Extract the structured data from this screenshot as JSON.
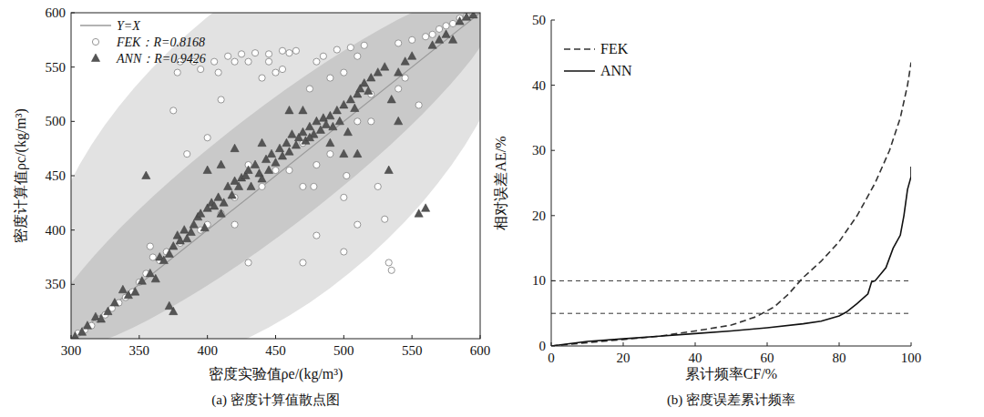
{
  "chart_data": [
    {
      "type": "scatter",
      "title": "(a) 密度计算值散点图",
      "x_label": "密度实验值ρe/(kg/m³)",
      "y_label": "密度计算值ρc/(kg/m³)",
      "xlim": [
        300,
        600
      ],
      "ylim": [
        300,
        600
      ],
      "xticks": [
        300,
        350,
        400,
        450,
        500,
        550,
        600
      ],
      "yticks": [
        350,
        400,
        450,
        500,
        550,
        600
      ],
      "legend": "top-left",
      "series": [
        {
          "name": "Y=X",
          "type": "line",
          "color": "#9a9a9a",
          "line_style": "solid",
          "x": [
            300,
            600
          ],
          "values": [
            300,
            600
          ]
        },
        {
          "name": "FEK：R=0.8168",
          "type": "scatter",
          "marker": "circle",
          "color": "#8a8a8a",
          "x": [
            305,
            310,
            315,
            320,
            325,
            330,
            335,
            340,
            345,
            350,
            355,
            358,
            360,
            365,
            370,
            375,
            378,
            380,
            385,
            390,
            395,
            400,
            405,
            410,
            415,
            420,
            425,
            430,
            435,
            440,
            445,
            450,
            455,
            460,
            465,
            470,
            475,
            478,
            480,
            485,
            490,
            495,
            500,
            502,
            505,
            510,
            515,
            520,
            525,
            530,
            533,
            535,
            540,
            545,
            550,
            555,
            560,
            565,
            570,
            575,
            580,
            585,
            590,
            595,
            450,
            460,
            470,
            480,
            490,
            500,
            510,
            520,
            540,
            400,
            410,
            420,
            440,
            395,
            380,
            470,
            430,
            420,
            408,
            430,
            445,
            500,
            510,
            480,
            455
          ],
          "values": [
            305,
            308,
            312,
            318,
            322,
            328,
            333,
            338,
            343,
            352,
            360,
            385,
            375,
            372,
            380,
            510,
            545,
            555,
            470,
            555,
            548,
            485,
            555,
            520,
            560,
            405,
            562,
            370,
            563,
            540,
            562,
            545,
            565,
            563,
            565,
            370,
            530,
            440,
            395,
            560,
            540,
            566,
            380,
            450,
            568,
            405,
            570,
            525,
            440,
            410,
            370,
            363,
            572,
            540,
            575,
            515,
            578,
            580,
            585,
            588,
            590,
            595,
            597,
            599,
            455,
            455,
            440,
            460,
            470,
            430,
            500,
            500,
            530,
            405,
            415,
            430,
            440,
            400,
            388,
            480,
            460,
            555,
            545,
            555,
            555,
            545,
            560,
            555,
            548
          ]
        },
        {
          "name": "ANN：R=0.9426",
          "type": "scatter",
          "marker": "triangle",
          "color": "#555555",
          "x": [
            303,
            308,
            312,
            318,
            322,
            327,
            332,
            338,
            342,
            347,
            352,
            355,
            358,
            362,
            365,
            368,
            372,
            375,
            378,
            380,
            383,
            385,
            388,
            390,
            393,
            395,
            398,
            400,
            403,
            405,
            408,
            410,
            412,
            415,
            418,
            420,
            423,
            425,
            428,
            430,
            432,
            435,
            438,
            440,
            443,
            445,
            447,
            450,
            453,
            455,
            458,
            460,
            462,
            465,
            467,
            470,
            472,
            475,
            478,
            480,
            483,
            485,
            487,
            490,
            492,
            495,
            497,
            500,
            503,
            505,
            508,
            510,
            512,
            515,
            518,
            520,
            525,
            530,
            533,
            535,
            540,
            545,
            550,
            555,
            560,
            565,
            570,
            575,
            580,
            585,
            590,
            595,
            375,
            372,
            400,
            410,
            420,
            440,
            460,
            470,
            475,
            490,
            500,
            510,
            540
          ],
          "values": [
            302,
            306,
            312,
            320,
            318,
            325,
            333,
            345,
            340,
            343,
            353,
            450,
            360,
            355,
            375,
            372,
            378,
            385,
            395,
            390,
            400,
            392,
            398,
            405,
            412,
            415,
            402,
            420,
            425,
            422,
            430,
            415,
            425,
            440,
            432,
            445,
            440,
            448,
            450,
            455,
            440,
            460,
            452,
            447,
            465,
            455,
            470,
            462,
            475,
            468,
            480,
            472,
            488,
            478,
            485,
            490,
            482,
            495,
            488,
            500,
            492,
            503,
            497,
            505,
            495,
            510,
            500,
            515,
            490,
            520,
            512,
            525,
            530,
            535,
            528,
            540,
            545,
            550,
            455,
            520,
            545,
            555,
            560,
            415,
            420,
            570,
            575,
            580,
            575,
            592,
            596,
            598,
            325,
            330,
            455,
            460,
            475,
            480,
            510,
            510,
            485,
            480,
            470,
            470,
            500
          ]
        }
      ]
    },
    {
      "type": "line",
      "title": "(b) 密度误差累计频率",
      "x_label": "累计频率CF/%",
      "y_label": "相对误差AE/%",
      "xlim": [
        0,
        100
      ],
      "ylim": [
        0,
        50
      ],
      "xticks": [
        0,
        20,
        40,
        60,
        80,
        100
      ],
      "yticks": [
        0,
        10,
        20,
        30,
        40,
        50
      ],
      "legend": "top-left",
      "reference_lines": [
        5,
        10
      ],
      "series": [
        {
          "name": "FEK",
          "color": "#333333",
          "line_style": "dashed",
          "x": [
            0,
            10,
            20,
            30,
            40,
            50,
            57,
            62,
            66,
            70,
            75,
            80,
            85,
            90,
            94,
            97,
            99,
            100
          ],
          "values": [
            0,
            0.5,
            1,
            1.5,
            2.3,
            3.2,
            4.5,
            6,
            8,
            10.5,
            13,
            16,
            20,
            25,
            30,
            35,
            40,
            43.5
          ]
        },
        {
          "name": "ANN",
          "color": "#111111",
          "line_style": "solid",
          "x": [
            0,
            10,
            20,
            30,
            40,
            50,
            60,
            70,
            75,
            80,
            82,
            85,
            88,
            89,
            90,
            93,
            95,
            97,
            98,
            99,
            100,
            100
          ],
          "values": [
            0,
            0.7,
            1.1,
            1.5,
            1.9,
            2.3,
            2.8,
            3.4,
            3.8,
            4.6,
            5.2,
            6.5,
            8,
            9.8,
            10,
            12,
            15,
            17,
            20,
            24,
            26,
            27.5
          ]
        }
      ]
    }
  ]
}
